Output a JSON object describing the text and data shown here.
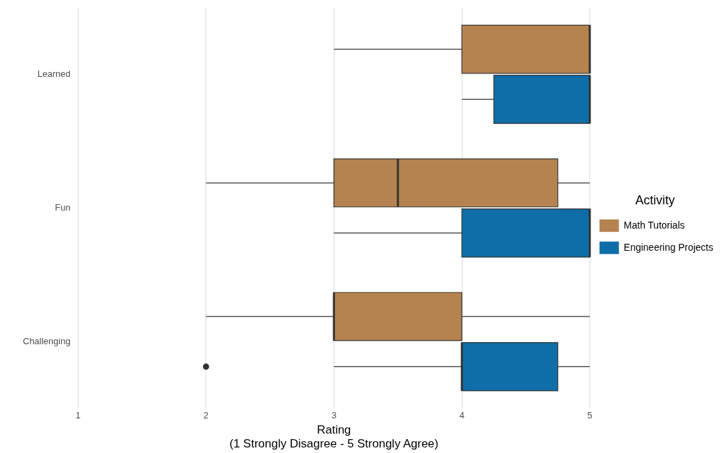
{
  "chart_data": {
    "type": "box",
    "orientation": "horizontal",
    "categories": [
      "Learned",
      "Fun",
      "Challenging"
    ],
    "xlabel": "Rating\n(1 Strongly Disagree - 5 Strongly Agree)",
    "legend_title": "Activity",
    "legend": "right",
    "grid": "x",
    "xlim": [
      1,
      5
    ],
    "xticks": [
      1,
      2,
      3,
      4,
      5
    ],
    "series": [
      {
        "name": "Math Tutorials",
        "color": "#b5834f",
        "boxes": [
          {
            "low": 3,
            "q1": 4,
            "median": 5,
            "q3": 5,
            "high": 5
          },
          {
            "low": 2,
            "q1": 3,
            "median": 3.5,
            "q3": 4.75,
            "high": 5
          },
          {
            "low": 2,
            "q1": 3,
            "median": 3,
            "q3": 4,
            "high": 5
          }
        ]
      },
      {
        "name": "Engineering Projects",
        "color": "#0f6ea8",
        "boxes": [
          {
            "low": 4,
            "q1": 4.25,
            "median": 5,
            "q3": 5,
            "high": 5
          },
          {
            "low": 3,
            "q1": 4,
            "median": 5,
            "q3": 5,
            "high": 5
          },
          {
            "low": 3,
            "q1": 4,
            "median": 4,
            "q3": 4.75,
            "high": 5,
            "outliers": [
              2
            ]
          }
        ]
      }
    ]
  }
}
